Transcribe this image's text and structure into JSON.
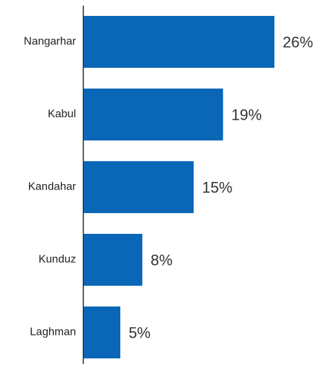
{
  "chart_data": {
    "type": "bar",
    "orientation": "horizontal",
    "categories": [
      "Nangarhar",
      "Kabul",
      "Kandahar",
      "Kunduz",
      "Laghman"
    ],
    "values": [
      26,
      19,
      15,
      8,
      5
    ],
    "value_labels": [
      "26%",
      "19%",
      "15%",
      "8%",
      "5%"
    ],
    "color": "#0a66b7"
  }
}
